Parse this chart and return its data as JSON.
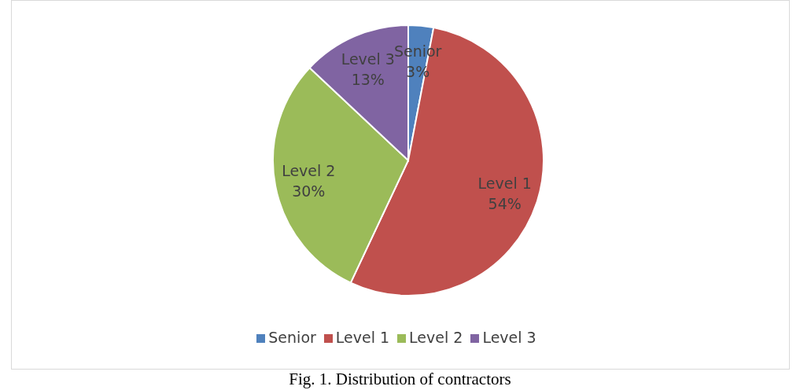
{
  "chart_data": {
    "type": "pie",
    "categories": [
      "Senior",
      "Level 1",
      "Level 2",
      "Level 3"
    ],
    "values": [
      3,
      54,
      30,
      13
    ],
    "value_labels": [
      "3%",
      "54%",
      "30%",
      "13%"
    ],
    "colors": [
      "#4f81bd",
      "#c0504d",
      "#9bbb59",
      "#8064a2"
    ],
    "legend": "bottom",
    "annotations": [
      "Fig. 1. Distribution of contractors"
    ]
  }
}
